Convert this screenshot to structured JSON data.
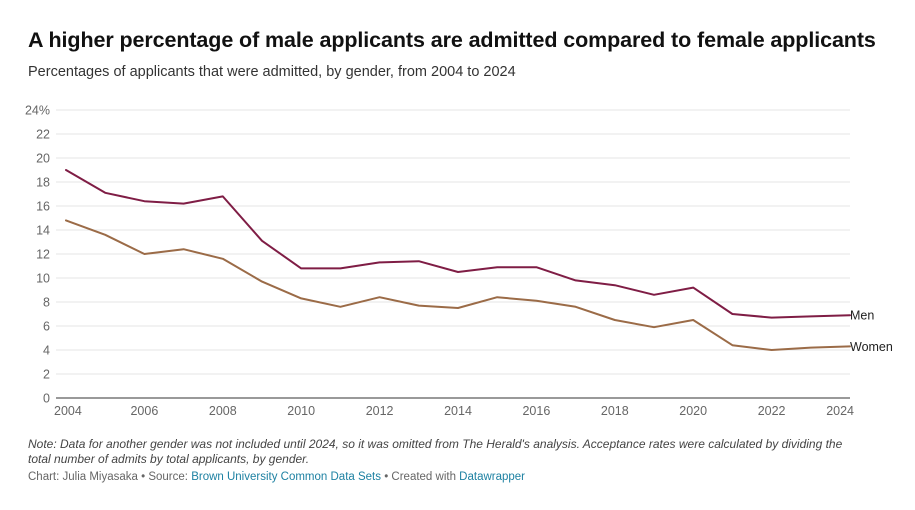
{
  "header": {
    "title": "A higher percentage of male applicants are admitted compared to female applicants",
    "subtitle": "Percentages of applicants that were admitted, by gender, from 2004 to 2024"
  },
  "chart_data": {
    "type": "line",
    "title": "A higher percentage of male applicants are admitted compared to female applicants",
    "subtitle": "Percentages of applicants that were admitted, by gender, from 2004 to 2024",
    "xlabel": "",
    "ylabel": "",
    "x": [
      2004,
      2005,
      2006,
      2007,
      2008,
      2009,
      2010,
      2011,
      2012,
      2013,
      2014,
      2015,
      2016,
      2017,
      2018,
      2019,
      2020,
      2021,
      2022,
      2023,
      2024
    ],
    "x_ticks": [
      "2004",
      "2006",
      "2008",
      "2010",
      "2012",
      "2014",
      "2016",
      "2018",
      "2020",
      "2022",
      "2024"
    ],
    "y_ticks": [
      "0",
      "2",
      "4",
      "6",
      "8",
      "10",
      "12",
      "14",
      "16",
      "18",
      "20",
      "22",
      "24%"
    ],
    "xlim": [
      2004,
      2024
    ],
    "ylim": [
      0,
      24
    ],
    "grid": true,
    "legend": "direct labels at right end of lines",
    "series": [
      {
        "name": "Men",
        "color": "#7f1d45",
        "values": [
          19.0,
          17.1,
          16.4,
          16.2,
          16.8,
          13.1,
          10.8,
          10.8,
          11.3,
          11.4,
          10.5,
          10.9,
          10.9,
          9.8,
          9.4,
          8.6,
          9.2,
          7.0,
          6.7,
          6.8,
          6.9
        ]
      },
      {
        "name": "Women",
        "color": "#9b6b47",
        "values": [
          14.8,
          13.6,
          12.0,
          12.4,
          11.6,
          9.7,
          8.3,
          7.6,
          8.4,
          7.7,
          7.5,
          8.4,
          8.1,
          7.6,
          6.5,
          5.9,
          6.5,
          4.4,
          4.0,
          4.2,
          4.3
        ]
      }
    ]
  },
  "footer": {
    "note": "Note: Data for another gender was not included until 2024, so it was omitted from The Herald's analysis. Acceptance rates were calculated by dividing the total number of admits by total applicants, by gender.",
    "credit_prefix": "Chart: Julia Miyasaka • Source: ",
    "source_link": "Brown University Common Data Sets",
    "separator": " • Created with ",
    "tool_link": "Datawrapper"
  }
}
